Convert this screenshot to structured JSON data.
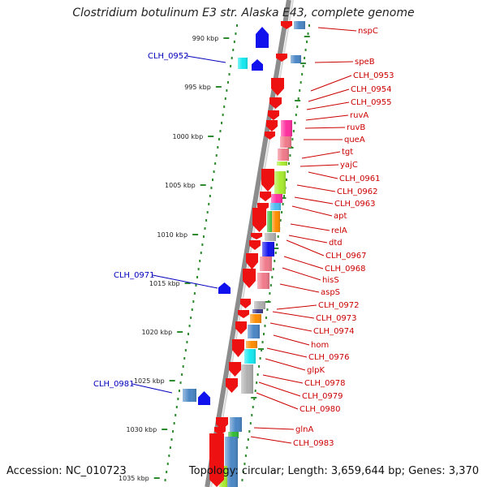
{
  "title": "Clostridium botulinum E3 str. Alaska E43, complete genome",
  "accession": "Accession: NC_010723",
  "topology": "Topology: circular; Length: 3,659,644 bp; Genes: 3,370",
  "kbp_ticks": [
    "990 kbp",
    "995 kbp",
    "1000 kbp",
    "1005 kbp",
    "1010 kbp",
    "1015 kbp",
    "1020 kbp",
    "1025 kbp",
    "1030 kbp",
    "1035 kbp"
  ],
  "left_labels": [
    "CLH_0952",
    "CLH_0971",
    "CLH_0981"
  ],
  "right_labels": [
    "nspC",
    "speB",
    "CLH_0953",
    "CLH_0954",
    "CLH_0955",
    "ruvA",
    "ruvB",
    "queA",
    "tgt",
    "yajC",
    "CLH_0961",
    "CLH_0962",
    "CLH_0963",
    "apt",
    "relA",
    "dtd",
    "CLH_0967",
    "CLH_0968",
    "hisS",
    "aspS",
    "CLH_0972",
    "CLH_0973",
    "CLH_0974",
    "hom",
    "CLH_0976",
    "glpK",
    "CLH_0978",
    "CLH_0979",
    "CLH_0980",
    "glnA",
    "CLH_0983"
  ],
  "colors": {
    "backbone": "#8c8c8c",
    "tick": "#2e8b2e",
    "left_label": "#0000bb",
    "right_label": "#cc0000",
    "red": "#ee1111",
    "blue": "#1111ee",
    "steelblue": "#4a86c5",
    "cyan": "#16e8f0",
    "pink": "#f07a8a",
    "magenta": "#ff2e9e",
    "lime": "#a8ec30",
    "green": "#33bb33",
    "orange": "#ff8c00",
    "gray": "#b0b0b0",
    "navy": "#3a3a8a",
    "lightblue": "#4dbcf0"
  }
}
